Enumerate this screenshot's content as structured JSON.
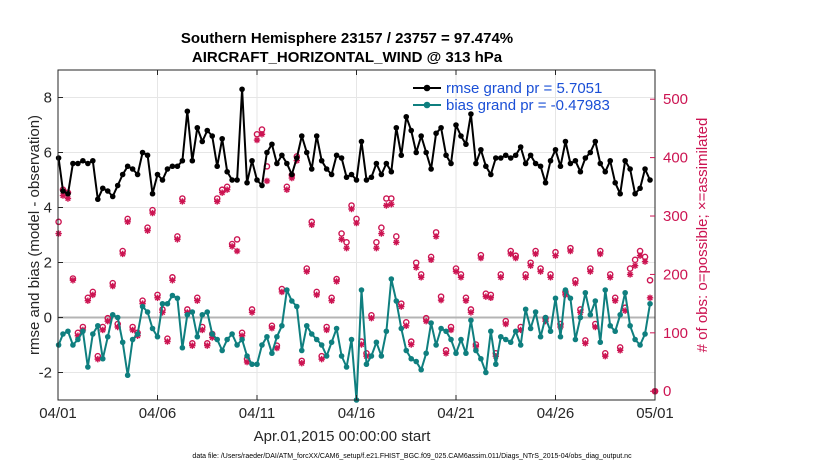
{
  "chart_data": {
    "type": "line",
    "title_line1": "Southern Hemisphere 23157 / 23757 = 97.474%",
    "title_line2": "AIRCRAFT_HORIZONTAL_WIND @ 313 hPa",
    "ylabel_left": "rmse and bias (model - observation)",
    "ylabel_right": "# of obs: o=possible; ×=assimilated",
    "xlabel": "Apr.01,2015 00:00:00 start",
    "footnote": "data file: /Users/raeder/DAI/ATM_forcXX/CAM6_setup/f.e21.FHIST_BGC.f09_025.CAM6assim.011/Diags_NTrS_2015-04/obs_diag_output.nc",
    "x_ticks": [
      {
        "value": 0,
        "label": "04/01"
      },
      {
        "value": 5,
        "label": "04/06"
      },
      {
        "value": 10,
        "label": "04/11"
      },
      {
        "value": 15,
        "label": "04/16"
      },
      {
        "value": 20,
        "label": "04/21"
      },
      {
        "value": 25,
        "label": "04/26"
      },
      {
        "value": 30,
        "label": "05/01"
      }
    ],
    "xlim": [
      0,
      30
    ],
    "ylim_left": [
      -3,
      9
    ],
    "ylim_right": [
      -15,
      550
    ],
    "y_ticks_left": [
      -2,
      0,
      2,
      4,
      6,
      8
    ],
    "y_ticks_right": [
      0,
      100,
      200,
      300,
      400,
      500
    ],
    "grid": true,
    "legend_position": "top-right",
    "colors": {
      "rmse": "#000000",
      "bias": "#0f7f7f",
      "obs": "#cc1452",
      "zero": "#b4b4b4",
      "legend_text": "#1a4fd6"
    },
    "series": [
      {
        "name": "rmse grand pr = 5.7051",
        "axis": "left",
        "x": [
          0.03,
          0.25,
          0.5,
          0.75,
          1.0,
          1.25,
          1.5,
          1.75,
          2.0,
          2.25,
          2.5,
          2.75,
          3.0,
          3.25,
          3.5,
          3.75,
          4.0,
          4.25,
          4.5,
          4.75,
          5.0,
          5.25,
          5.5,
          5.75,
          6.0,
          6.25,
          6.5,
          6.75,
          7.0,
          7.25,
          7.5,
          7.75,
          8.0,
          8.25,
          8.5,
          8.75,
          9.0,
          9.25,
          9.5,
          9.75,
          10.0,
          10.25,
          10.5,
          10.75,
          11.0,
          11.25,
          11.5,
          11.75,
          12.0,
          12.25,
          12.5,
          12.75,
          13.0,
          13.25,
          13.5,
          13.75,
          14.0,
          14.25,
          14.5,
          14.75,
          15.0,
          15.25,
          15.5,
          15.75,
          16.0,
          16.25,
          16.5,
          16.75,
          17.0,
          17.25,
          17.5,
          17.75,
          18.0,
          18.25,
          18.5,
          18.75,
          19.0,
          19.25,
          19.5,
          19.75,
          20.0,
          20.25,
          20.5,
          20.75,
          21.0,
          21.25,
          21.5,
          21.75,
          22.0,
          22.25,
          22.5,
          22.75,
          23.0,
          23.25,
          23.5,
          23.75,
          24.0,
          24.25,
          24.5,
          24.75,
          25.0,
          25.25,
          25.5,
          25.75,
          26.0,
          26.25,
          26.5,
          26.75,
          27.0,
          27.25,
          27.5,
          27.75,
          28.0,
          28.25,
          28.5,
          28.75,
          29.0,
          29.25,
          29.5,
          29.75
        ],
        "values": [
          5.8,
          4.6,
          4.5,
          5.6,
          5.6,
          5.7,
          5.6,
          5.7,
          4.3,
          4.7,
          4.6,
          4.4,
          4.8,
          5.2,
          5.5,
          5.4,
          5.2,
          6.0,
          5.9,
          4.5,
          5.2,
          5.0,
          5.4,
          5.5,
          5.5,
          5.7,
          7.5,
          5.7,
          6.9,
          6.4,
          6.8,
          6.6,
          5.5,
          6.5,
          5.3,
          5.0,
          5.0,
          8.3,
          4.9,
          5.7,
          5.0,
          4.8,
          6.0,
          6.3,
          5.6,
          5.9,
          5.6,
          5.2,
          5.8,
          6.6,
          6.0,
          5.4,
          6.6,
          5.7,
          5.4,
          5.2,
          5.9,
          5.8,
          5.1,
          5.2,
          5.0,
          6.4,
          5.0,
          5.1,
          5.6,
          5.2,
          5.6,
          5.3,
          6.9,
          5.9,
          7.3,
          6.8,
          6.0,
          6.6,
          6.0,
          5.4,
          6.7,
          6.9,
          5.9,
          5.6,
          7.0,
          6.6,
          6.3,
          7.4,
          5.6,
          6.1,
          5.5,
          5.2,
          5.8,
          5.8,
          5.9,
          5.8,
          5.9,
          6.2,
          5.6,
          5.9,
          5.6,
          5.5,
          4.9,
          5.7,
          6.1,
          5.5,
          6.4,
          5.6,
          5.7,
          5.3,
          5.8,
          6.0,
          6.4,
          5.6,
          5.3,
          5.7,
          4.9,
          4.5,
          5.7,
          5.4,
          4.5,
          4.7,
          5.4,
          5.0
        ]
      },
      {
        "name": "bias grand pr = -0.47983",
        "axis": "left",
        "x": [
          0.03,
          0.25,
          0.5,
          0.75,
          1.0,
          1.25,
          1.5,
          1.75,
          2.0,
          2.25,
          2.5,
          2.75,
          3.0,
          3.25,
          3.5,
          3.75,
          4.0,
          4.25,
          4.5,
          4.75,
          5.0,
          5.25,
          5.5,
          5.75,
          6.0,
          6.25,
          6.5,
          6.75,
          7.0,
          7.25,
          7.5,
          7.75,
          8.0,
          8.25,
          8.5,
          8.75,
          9.0,
          9.25,
          9.5,
          9.75,
          10.0,
          10.25,
          10.5,
          10.75,
          11.0,
          11.25,
          11.5,
          11.75,
          12.0,
          12.25,
          12.5,
          12.75,
          13.0,
          13.25,
          13.5,
          13.75,
          14.0,
          14.25,
          14.5,
          14.75,
          15.0,
          15.25,
          15.5,
          15.75,
          16.0,
          16.25,
          16.5,
          16.75,
          17.0,
          17.25,
          17.5,
          17.75,
          18.0,
          18.25,
          18.5,
          18.75,
          19.0,
          19.25,
          19.5,
          19.75,
          20.0,
          20.25,
          20.5,
          20.75,
          21.0,
          21.25,
          21.5,
          21.75,
          22.0,
          22.25,
          22.5,
          22.75,
          23.0,
          23.25,
          23.5,
          23.75,
          24.0,
          24.25,
          24.5,
          24.75,
          25.0,
          25.25,
          25.5,
          25.75,
          26.0,
          26.25,
          26.5,
          26.75,
          27.0,
          27.25,
          27.5,
          27.75,
          28.0,
          28.25,
          28.5,
          28.75,
          29.0,
          29.25,
          29.5,
          29.75
        ],
        "values": [
          -1.0,
          -0.6,
          -0.5,
          -1.0,
          -0.8,
          -0.5,
          -1.8,
          -0.6,
          -0.3,
          -1.5,
          -0.7,
          0.1,
          0.0,
          -0.9,
          -2.1,
          -0.8,
          -0.6,
          0.4,
          0.2,
          -0.4,
          -0.7,
          0.5,
          0.5,
          0.8,
          0.7,
          -1.1,
          0.1,
          0.2,
          -0.7,
          0.1,
          0.2,
          -0.6,
          -0.8,
          -1.2,
          -0.8,
          -0.6,
          -1.0,
          -0.8,
          -1.4,
          -1.7,
          -1.7,
          -1.0,
          -0.7,
          -1.3,
          -0.7,
          -0.3,
          1.0,
          0.6,
          0.4,
          -1.2,
          -0.3,
          -0.6,
          -0.8,
          -1.0,
          -1.4,
          -0.9,
          -0.4,
          -1.4,
          -1.8,
          -0.8,
          -3.0,
          1.0,
          -1.7,
          -1.4,
          -0.9,
          -1.4,
          -0.5,
          1.4,
          0.6,
          -0.4,
          -1.2,
          -1.5,
          -1.6,
          -1.9,
          -1.3,
          -0.2,
          -1.0,
          -0.4,
          -0.5,
          -0.8,
          -1.3,
          -0.8,
          -1.3,
          -0.1,
          -1.2,
          -1.5,
          -2.0,
          -0.5,
          -1.7,
          -0.7,
          -0.8,
          -0.9,
          -0.5,
          -1.0,
          0.3,
          -0.4,
          0.2,
          -0.7,
          0.0,
          -0.5,
          0.7,
          -0.7,
          1.0,
          0.7,
          -0.8,
          0.0,
          0.9,
          0.1,
          0.6,
          -0.9,
          1.0,
          -0.3,
          -0.5,
          0.1,
          0.9,
          -0.3,
          -0.8,
          -1.0,
          -0.6,
          0.5
        ]
      },
      {
        "name": "obs possible",
        "axis": "right",
        "marker": "circle",
        "x": [
          0.03,
          0.25,
          0.5,
          0.75,
          1.0,
          1.25,
          1.5,
          1.75,
          2.0,
          2.25,
          2.5,
          2.75,
          3.0,
          3.25,
          3.5,
          3.75,
          4.0,
          4.25,
          4.5,
          4.75,
          5.0,
          5.25,
          5.5,
          5.75,
          6.0,
          6.25,
          6.5,
          6.75,
          7.0,
          7.25,
          7.5,
          7.75,
          8.0,
          8.25,
          8.5,
          8.75,
          9.0,
          9.25,
          9.5,
          9.75,
          10.0,
          10.25,
          10.5,
          10.75,
          11.0,
          11.25,
          11.5,
          11.75,
          12.0,
          12.25,
          12.5,
          12.75,
          13.0,
          13.25,
          13.5,
          13.75,
          14.0,
          14.25,
          14.5,
          14.75,
          15.0,
          15.25,
          15.5,
          15.75,
          16.0,
          16.25,
          16.5,
          16.75,
          17.0,
          17.25,
          17.5,
          17.75,
          18.0,
          18.25,
          18.5,
          18.75,
          19.0,
          19.25,
          19.5,
          19.75,
          20.0,
          20.25,
          20.5,
          20.75,
          21.0,
          21.25,
          21.5,
          21.75,
          22.0,
          22.25,
          22.5,
          22.75,
          23.0,
          23.25,
          23.5,
          23.75,
          24.0,
          24.25,
          24.5,
          24.75,
          25.0,
          25.25,
          25.5,
          25.75,
          26.0,
          26.25,
          26.5,
          26.75,
          27.0,
          27.25,
          27.5,
          27.75,
          28.0,
          28.25,
          28.5,
          28.75,
          29.0,
          29.25,
          29.5,
          29.75
        ],
        "values": [
          290,
          345,
          340,
          193,
          100,
          110,
          160,
          170,
          60,
          110,
          125,
          185,
          115,
          240,
          295,
          110,
          100,
          155,
          280,
          310,
          165,
          140,
          90,
          195,
          265,
          330,
          140,
          82,
          160,
          110,
          82,
          98,
          330,
          345,
          350,
          252,
          260,
          100,
          55,
          140,
          440,
          448,
          385,
          112,
          78,
          175,
          350,
          370,
          402,
          52,
          210,
          290,
          170,
          60,
          110,
          160,
          192,
          270,
          255,
          318,
          295,
          85,
          65,
          130,
          255,
          280,
          330,
          330,
          265,
          150,
          118,
          85,
          220,
          200,
          125,
          230,
          272,
          162,
          70,
          110,
          210,
          200,
          160,
          140,
          80,
          233,
          167,
          165,
          65,
          200,
          120,
          240,
          232,
          110,
          200,
          220,
          240,
          210,
          125,
          200,
          238,
          115,
          170,
          245,
          190,
          140,
          87,
          210,
          115,
          240,
          65,
          200,
          160,
          75,
          143,
          210,
          225,
          240,
          230,
          190
        ]
      },
      {
        "name": "obs assimilated",
        "axis": "right",
        "marker": "asterisk",
        "x": [
          0.03,
          0.25,
          0.5,
          0.75,
          1.0,
          1.25,
          1.5,
          1.75,
          2.0,
          2.25,
          2.5,
          2.75,
          3.0,
          3.25,
          3.5,
          3.75,
          4.0,
          4.25,
          4.5,
          4.75,
          5.0,
          5.25,
          5.5,
          5.75,
          6.0,
          6.25,
          6.5,
          6.75,
          7.0,
          7.25,
          7.5,
          7.75,
          8.0,
          8.25,
          8.5,
          8.75,
          9.0,
          9.25,
          9.5,
          9.75,
          10.0,
          10.25,
          10.5,
          10.75,
          11.0,
          11.25,
          11.5,
          11.75,
          12.0,
          12.25,
          12.5,
          12.75,
          13.0,
          13.25,
          13.5,
          13.75,
          14.0,
          14.25,
          14.5,
          14.75,
          15.0,
          15.25,
          15.5,
          15.75,
          16.0,
          16.25,
          16.5,
          16.75,
          17.0,
          17.25,
          17.5,
          17.75,
          18.0,
          18.25,
          18.5,
          18.75,
          19.0,
          19.25,
          19.5,
          19.75,
          20.0,
          20.25,
          20.5,
          20.75,
          21.0,
          21.25,
          21.5,
          21.75,
          22.0,
          22.25,
          22.5,
          22.75,
          23.0,
          23.25,
          23.5,
          23.75,
          24.0,
          24.25,
          24.5,
          24.75,
          25.0,
          25.25,
          25.5,
          25.75,
          26.0,
          26.25,
          26.5,
          26.75,
          27.0,
          27.25,
          27.5,
          27.75,
          28.0,
          28.25,
          28.5,
          28.75,
          29.0,
          29.25,
          29.5,
          29.75
        ],
        "values": [
          270,
          335,
          330,
          190,
          95,
          105,
          155,
          165,
          55,
          105,
          120,
          180,
          110,
          235,
          290,
          105,
          95,
          150,
          275,
          305,
          160,
          135,
          85,
          190,
          260,
          325,
          135,
          78,
          155,
          105,
          78,
          92,
          325,
          340,
          345,
          248,
          240,
          95,
          50,
          135,
          430,
          440,
          360,
          108,
          74,
          170,
          345,
          365,
          395,
          48,
          205,
          285,
          165,
          55,
          105,
          155,
          188,
          260,
          245,
          312,
          288,
          80,
          60,
          125,
          245,
          270,
          318,
          320,
          255,
          145,
          112,
          80,
          212,
          195,
          120,
          225,
          265,
          156,
          65,
          105,
          205,
          195,
          155,
          135,
          76,
          228,
          162,
          160,
          60,
          195,
          115,
          235,
          228,
          105,
          195,
          215,
          235,
          205,
          120,
          195,
          232,
          110,
          165,
          240,
          185,
          135,
          82,
          205,
          110,
          235,
          60,
          195,
          155,
          70,
          138,
          200,
          215,
          232,
          222,
          160
        ]
      }
    ]
  }
}
